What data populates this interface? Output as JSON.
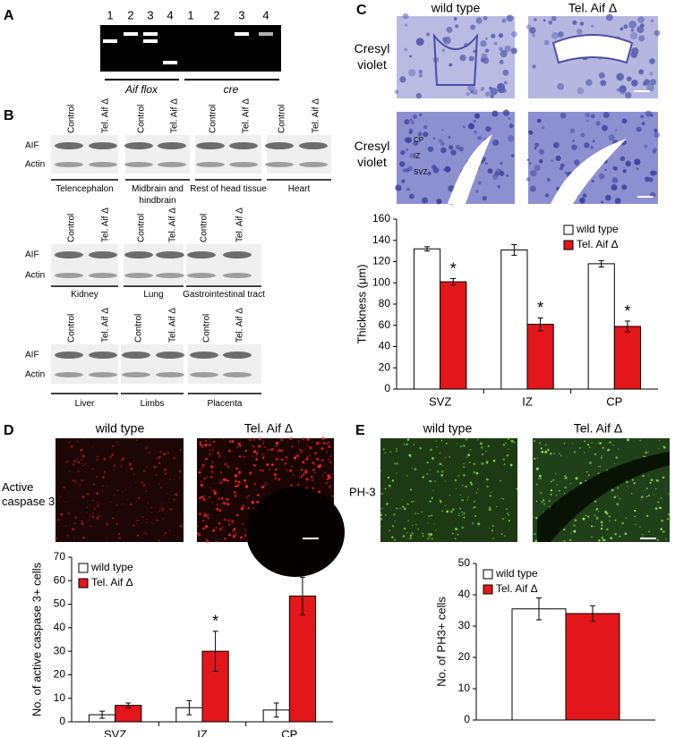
{
  "panel_labels": [
    "A",
    "B",
    "C",
    "D",
    "E"
  ],
  "panel_a": {
    "lanes": [
      "1",
      "2",
      "3",
      "4"
    ],
    "groups": [
      "Aif flox",
      "cre"
    ]
  },
  "panel_b": {
    "column_labels": [
      "Control",
      "Tel. Aif Δ"
    ],
    "row_labels": [
      "AIF",
      "Actin"
    ],
    "tissues": [
      "Telencephalon",
      "Midbrain and hindbrain",
      "Rest of head tissue",
      "Heart",
      "Kidney",
      "Lung",
      "Gastrointestinal tract",
      "Liver",
      "Limbs",
      "Placenta"
    ]
  },
  "panel_c": {
    "columns": [
      "wild type",
      "Tel. Aif Δ"
    ],
    "stain": "Cresyl violet",
    "layers": [
      "CP",
      "IZ",
      "SVZ"
    ]
  },
  "panel_d": {
    "columns": [
      "wild type",
      "Tel. Aif Δ"
    ],
    "stain": "Active caspase 3"
  },
  "panel_e": {
    "columns": [
      "wild type",
      "Tel. Aif Δ"
    ],
    "stain": "PH-3"
  },
  "chart_data": [
    {
      "type": "bar",
      "y_label": "Thickness (μm)",
      "categories": [
        "SVZ",
        "IZ",
        "CP"
      ],
      "series": [
        {
          "name": "wild type",
          "color": "#ffffff",
          "values": [
            132,
            131,
            118
          ],
          "errors": [
            2,
            5,
            3
          ]
        },
        {
          "name": "Tel. Aif Δ",
          "color": "#e3161b",
          "values": [
            101,
            61,
            59
          ],
          "errors": [
            3,
            6,
            5
          ],
          "significance": [
            "*",
            "*",
            "*"
          ]
        }
      ],
      "ylim": [
        0,
        160
      ],
      "yticks": [
        0,
        20,
        40,
        60,
        80,
        100,
        120,
        140,
        160
      ],
      "legend": "upper right"
    },
    {
      "type": "bar",
      "y_label": "No. of active caspase 3+ cells",
      "categories": [
        "SVZ",
        "IZ",
        "CP"
      ],
      "series": [
        {
          "name": "wild type",
          "color": "#ffffff",
          "values": [
            3,
            6,
            5
          ],
          "errors": [
            1.5,
            3,
            3
          ]
        },
        {
          "name": "Tel. Aif Δ",
          "color": "#e3161b",
          "values": [
            7,
            30,
            53.5
          ],
          "errors": [
            1,
            8.5,
            8
          ],
          "significance": [
            null,
            "*",
            "*"
          ]
        }
      ],
      "ylim": [
        0,
        70
      ],
      "yticks": [
        0,
        10,
        20,
        30,
        40,
        50,
        60,
        70
      ],
      "legend": "upper left"
    },
    {
      "type": "bar",
      "y_label": "No. of PH3+ cells",
      "categories": [
        null
      ],
      "series": [
        {
          "name": "wild type",
          "color": "#ffffff",
          "values": [
            35.5
          ],
          "errors": [
            3.5
          ]
        },
        {
          "name": "Tel. Aif Δ",
          "color": "#e3161b",
          "values": [
            34
          ],
          "errors": [
            2.5
          ]
        }
      ],
      "ylim": [
        0,
        50
      ],
      "yticks": [
        0,
        10,
        20,
        30,
        40,
        50
      ],
      "legend": "upper left"
    }
  ]
}
